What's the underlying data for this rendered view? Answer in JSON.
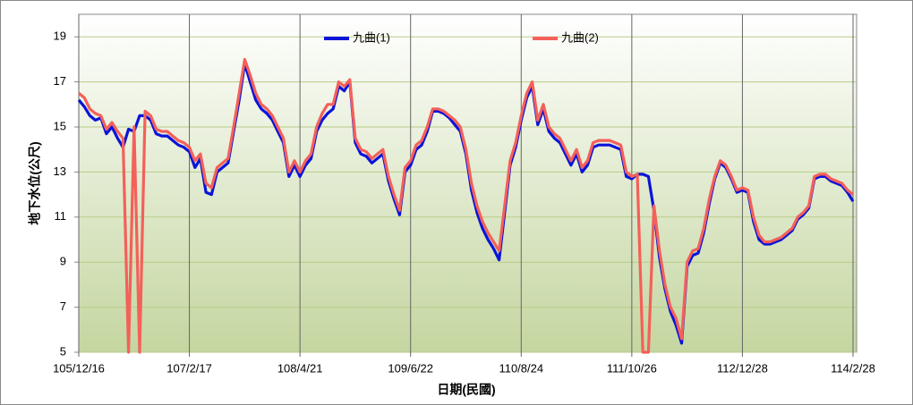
{
  "chart_data": {
    "type": "line",
    "y_label": "地下水位(公尺)",
    "x_label": "日期(民國)",
    "ylim": [
      5,
      20
    ],
    "yticks": [
      5,
      7,
      9,
      11,
      13,
      15,
      17,
      19
    ],
    "grid": true,
    "legend": "top",
    "categories": [
      "105/12/16",
      null,
      null,
      null,
      null,
      null,
      null,
      null,
      null,
      null,
      null,
      null,
      null,
      null,
      null,
      null,
      null,
      null,
      null,
      null,
      "107/2/17",
      null,
      null,
      null,
      null,
      null,
      null,
      null,
      null,
      null,
      null,
      null,
      null,
      null,
      null,
      null,
      null,
      null,
      null,
      null,
      "108/4/21",
      null,
      null,
      null,
      null,
      null,
      null,
      null,
      null,
      null,
      null,
      null,
      null,
      null,
      null,
      null,
      null,
      null,
      null,
      null,
      "109/6/22",
      null,
      null,
      null,
      null,
      null,
      null,
      null,
      null,
      null,
      null,
      null,
      null,
      null,
      null,
      null,
      null,
      null,
      null,
      null,
      "110/8/24",
      null,
      null,
      null,
      null,
      null,
      null,
      null,
      null,
      null,
      null,
      null,
      null,
      null,
      null,
      null,
      null,
      null,
      null,
      null,
      "111/10/26",
      null,
      null,
      null,
      null,
      null,
      null,
      null,
      null,
      null,
      null,
      null,
      null,
      null,
      null,
      null,
      null,
      null,
      null,
      null,
      "112/12/28",
      null,
      null,
      null,
      null,
      null,
      null,
      null,
      null,
      null,
      null,
      null,
      null,
      null,
      null,
      null,
      null,
      null,
      null,
      null,
      "114/2/28"
    ],
    "series": [
      {
        "name": "九曲(1)",
        "color": "#0a14d8",
        "values": [
          16.2,
          15.9,
          15.5,
          15.3,
          15.4,
          14.7,
          15.0,
          14.5,
          14.1,
          14.9,
          14.8,
          15.5,
          15.5,
          15.3,
          14.7,
          14.6,
          14.6,
          14.4,
          14.2,
          14.1,
          13.9,
          13.2,
          13.6,
          12.1,
          12.0,
          13.0,
          13.2,
          13.4,
          14.8,
          16.2,
          17.8,
          17.0,
          16.2,
          15.8,
          15.6,
          15.3,
          14.8,
          14.3,
          12.8,
          13.3,
          12.8,
          13.3,
          13.6,
          14.8,
          15.3,
          15.6,
          15.8,
          16.8,
          16.6,
          17.0,
          14.3,
          13.8,
          13.7,
          13.4,
          13.6,
          13.8,
          12.6,
          11.8,
          11.1,
          13.0,
          13.3,
          14.0,
          14.2,
          14.8,
          15.7,
          15.7,
          15.6,
          15.4,
          15.1,
          14.8,
          13.8,
          12.2,
          11.2,
          10.5,
          10.0,
          9.6,
          9.1,
          11.2,
          13.3,
          14.1,
          15.3,
          16.3,
          16.8,
          15.1,
          15.8,
          14.8,
          14.5,
          14.3,
          13.8,
          13.3,
          13.8,
          13.0,
          13.3,
          14.1,
          14.2,
          14.2,
          14.2,
          14.1,
          14.0,
          12.8,
          12.7,
          12.9,
          12.9,
          12.8,
          11.3,
          9.2,
          7.8,
          6.8,
          6.2,
          5.4,
          8.8,
          9.3,
          9.4,
          10.3,
          11.6,
          12.7,
          13.4,
          13.2,
          12.7,
          12.1,
          12.2,
          12.1,
          10.8,
          10.0,
          9.8,
          9.8,
          9.9,
          10.0,
          10.2,
          10.4,
          10.9,
          11.1,
          11.4,
          12.7,
          12.8,
          12.8,
          12.6,
          12.5,
          12.4,
          12.1,
          11.7
        ]
      },
      {
        "name": "九曲(2)",
        "color": "#f4605a",
        "values": [
          16.5,
          16.3,
          15.8,
          15.6,
          15.5,
          14.9,
          15.2,
          14.8,
          14.5,
          5,
          15.0,
          5,
          15.7,
          15.5,
          14.9,
          14.8,
          14.8,
          14.6,
          14.4,
          14.3,
          14.1,
          13.5,
          13.8,
          12.5,
          12.3,
          13.2,
          13.4,
          13.6,
          15.0,
          16.5,
          18.0,
          17.3,
          16.5,
          16.0,
          15.8,
          15.5,
          15.0,
          14.5,
          13.0,
          13.5,
          13.0,
          13.5,
          13.8,
          15.0,
          15.6,
          16.0,
          16.0,
          17.0,
          16.8,
          17.1,
          14.5,
          14.0,
          13.9,
          13.6,
          13.8,
          14.0,
          12.8,
          12.0,
          11.3,
          13.2,
          13.5,
          14.2,
          14.4,
          15.0,
          15.8,
          15.8,
          15.7,
          15.5,
          15.3,
          15.0,
          14.0,
          12.5,
          11.5,
          10.8,
          10.3,
          9.9,
          9.5,
          11.5,
          13.5,
          14.3,
          15.5,
          16.5,
          17.0,
          15.3,
          16.0,
          15.0,
          14.7,
          14.5,
          14.0,
          13.5,
          14.0,
          13.2,
          13.5,
          14.3,
          14.4,
          14.4,
          14.4,
          14.3,
          14.2,
          13.0,
          12.8,
          12.9,
          5,
          5,
          11.5,
          9.5,
          8.0,
          7.0,
          6.5,
          5.6,
          9.0,
          9.5,
          9.6,
          10.5,
          11.8,
          12.8,
          13.5,
          13.3,
          12.8,
          12.2,
          12.3,
          12.2,
          11.0,
          10.2,
          9.9,
          9.9,
          10.0,
          10.1,
          10.3,
          10.5,
          11.0,
          11.2,
          11.5,
          12.8,
          12.9,
          12.9,
          12.7,
          12.6,
          12.5,
          12.2,
          12.0
        ]
      }
    ]
  }
}
